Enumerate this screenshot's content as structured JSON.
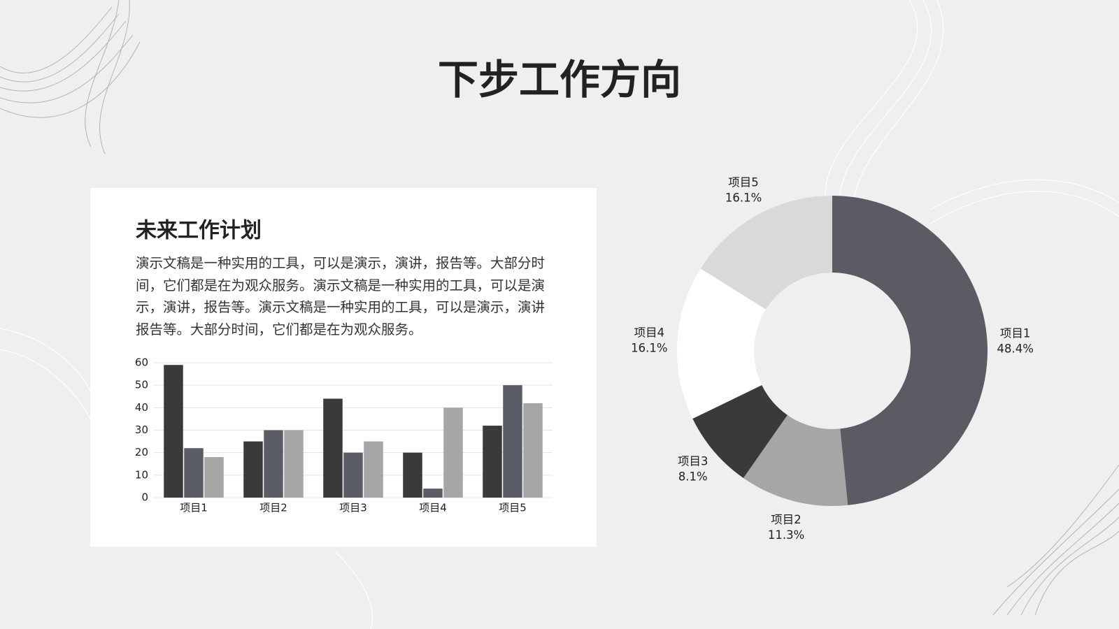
{
  "title": "下步工作方向",
  "card": {
    "title": "未来工作计划",
    "text": "演示文稿是一种实用的工具，可以是演示，演讲，报告等。大部分时间，它们都是在为观众服务。演示文稿是一种实用的工具，可以是演示，演讲，报告等。演示文稿是一种实用的工具，可以是演示，演讲报告等。大部分时间，它们都是在为观众服务。"
  },
  "chart_data": [
    {
      "type": "bar",
      "categories": [
        "项目1",
        "项目2",
        "项目3",
        "项目4",
        "项目5"
      ],
      "series": [
        {
          "color": "#3a3a3a",
          "values": [
            59,
            25,
            44,
            20,
            32
          ]
        },
        {
          "color": "#5a5c66",
          "values": [
            22,
            30,
            20,
            4,
            50
          ]
        },
        {
          "color": "#a6a6a6",
          "values": [
            18,
            30,
            25,
            40,
            42
          ]
        }
      ],
      "ylim": [
        0,
        60
      ],
      "yticks": [
        0,
        10,
        20,
        30,
        40,
        50,
        60
      ],
      "grid": true
    },
    {
      "type": "donut",
      "categories": [
        "项目1",
        "项目2",
        "项目3",
        "项目4",
        "项目5"
      ],
      "values": [
        48.4,
        11.3,
        8.1,
        16.1,
        16.1
      ],
      "value_labels": [
        "48.4%",
        "11.3%",
        "8.1%",
        "16.1%",
        "16.1%"
      ],
      "colors": [
        "#5a5b63",
        "#a6a6a6",
        "#3a3a3a",
        "#ffffff",
        "#d9d9d9"
      ]
    }
  ]
}
